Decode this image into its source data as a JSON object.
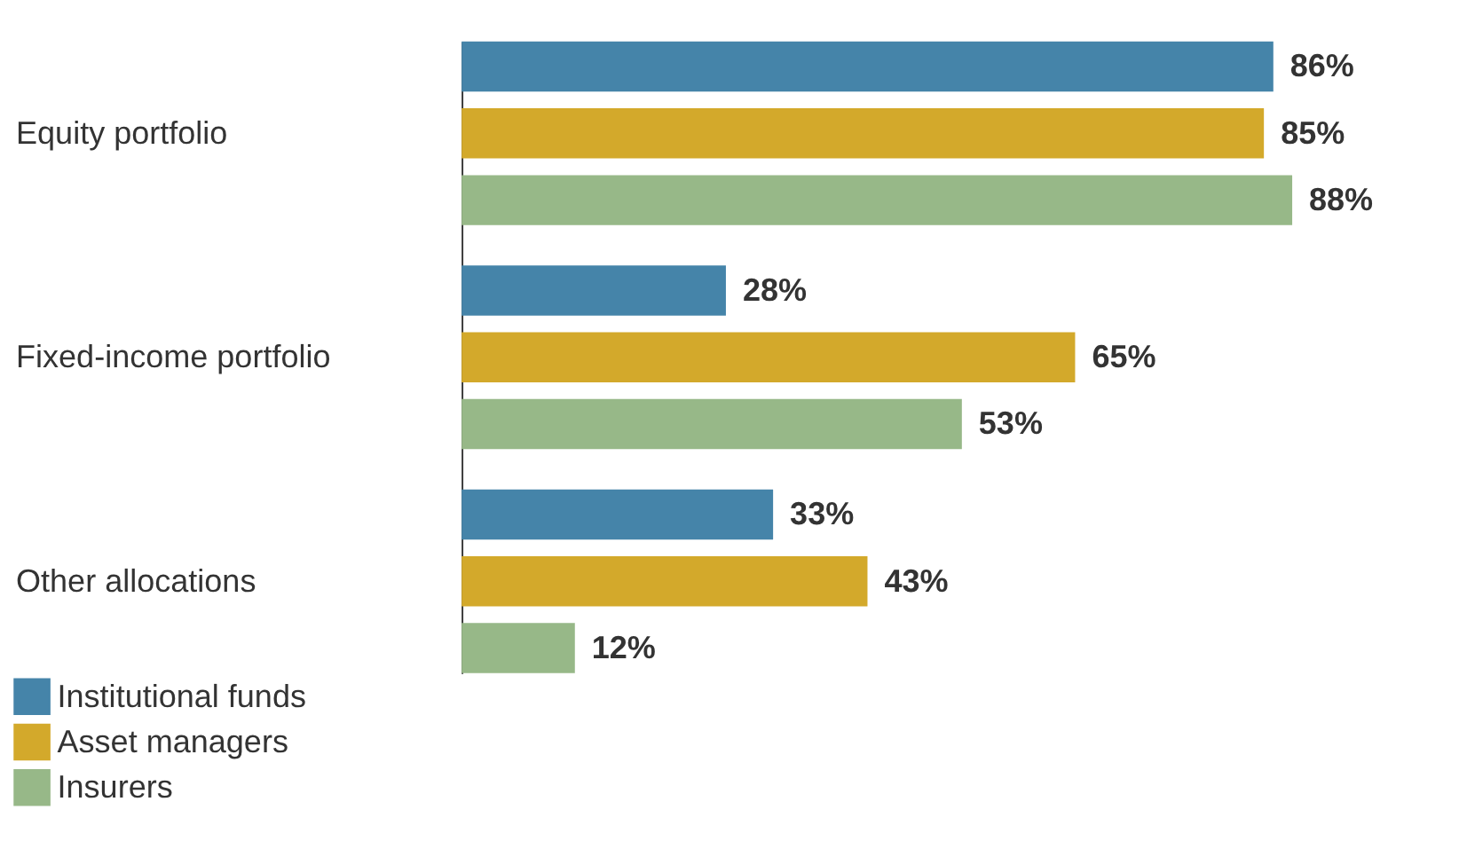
{
  "chart_data": {
    "type": "bar",
    "orientation": "horizontal",
    "categories": [
      "Equity portfolio",
      "Fixed-income portfolio",
      "Other allocations"
    ],
    "series": [
      {
        "name": "Institutional funds",
        "color": "#4584a9",
        "values": [
          86,
          28,
          33
        ],
        "value_labels": [
          "86%",
          "28%",
          "33%"
        ]
      },
      {
        "name": "Asset managers",
        "color": "#d3a92b",
        "values": [
          85,
          65,
          43
        ],
        "value_labels": [
          "85%",
          "65%",
          "43%"
        ]
      },
      {
        "name": "Insurers",
        "color": "#97b888",
        "values": [
          88,
          53,
          12
        ],
        "value_labels": [
          "88%",
          "53%",
          "12%"
        ]
      }
    ],
    "legend": "bottom left",
    "grid": false
  }
}
